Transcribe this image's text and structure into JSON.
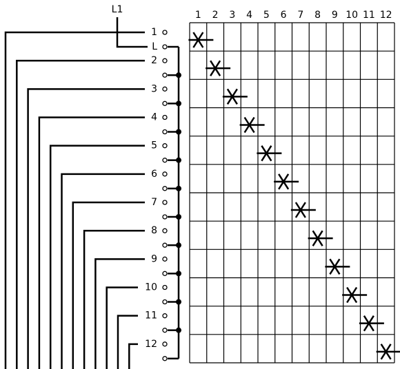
{
  "supply_label": "L1",
  "columns": [
    "1",
    "2",
    "3",
    "4",
    "5",
    "6",
    "7",
    "8",
    "9",
    "10",
    "11",
    "12"
  ],
  "rows": [
    {
      "label": "1",
      "sub_label": "L"
    },
    {
      "label": "2"
    },
    {
      "label": "3"
    },
    {
      "label": "4"
    },
    {
      "label": "5"
    },
    {
      "label": "6"
    },
    {
      "label": "7"
    },
    {
      "label": "8"
    },
    {
      "label": "9"
    },
    {
      "label": "10"
    },
    {
      "label": "11"
    },
    {
      "label": "12"
    }
  ]
}
